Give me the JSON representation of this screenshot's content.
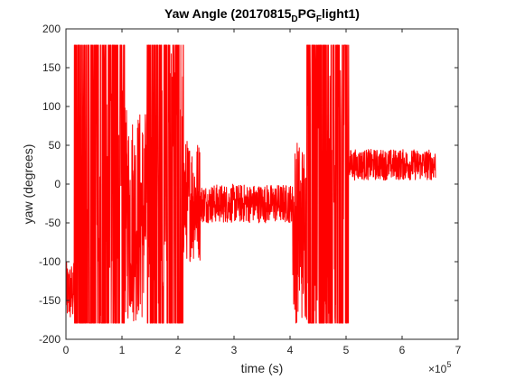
{
  "chart_data": {
    "type": "line",
    "title_parts": {
      "main": "Yaw Angle (20170815",
      "sub1": "D",
      "mid": "PG",
      "sub2": "F",
      "end": "light1)"
    },
    "xlabel": "time (s)",
    "ylabel": "yaw (degrees)",
    "x_exponent_base": "×10",
    "x_exponent_power": "5",
    "xlim": [
      0,
      7
    ],
    "ylim": [
      -200,
      200
    ],
    "xticks": [
      0,
      1,
      2,
      3,
      4,
      5,
      6,
      7
    ],
    "yticks": [
      -200,
      -150,
      -100,
      -50,
      0,
      50,
      100,
      150,
      200
    ],
    "grid": false,
    "legend": "none",
    "series": [
      {
        "color": "#ff0000",
        "segments": [
          {
            "x_range": [
              0.0,
              0.15
            ],
            "center": -140,
            "amplitude": 40,
            "note_saturated": false
          },
          {
            "x_range": [
              0.15,
              0.55
            ],
            "center": 0,
            "amplitude": 180,
            "note_saturated": true
          },
          {
            "x_range": [
              0.55,
              1.05
            ],
            "center": 0,
            "amplitude": 180,
            "note_saturated": true
          },
          {
            "x_range": [
              1.05,
              1.45
            ],
            "center": -40,
            "amplitude": 140,
            "note_saturated": false
          },
          {
            "x_range": [
              1.45,
              2.1
            ],
            "center": 0,
            "amplitude": 180,
            "note_saturated": true
          },
          {
            "x_range": [
              2.1,
              2.4
            ],
            "center": -20,
            "amplitude": 80,
            "note_saturated": false
          },
          {
            "x_range": [
              2.4,
              4.05
            ],
            "center": -25,
            "amplitude": 25,
            "note_saturated": false
          },
          {
            "x_range": [
              4.05,
              4.3
            ],
            "center": -60,
            "amplitude": 120,
            "note_saturated": false
          },
          {
            "x_range": [
              4.3,
              5.05
            ],
            "center": 0,
            "amplitude": 180,
            "note_saturated": true
          },
          {
            "x_range": [
              5.05,
              6.6
            ],
            "center": 25,
            "amplitude": 20,
            "note_saturated": false
          }
        ]
      }
    ]
  }
}
